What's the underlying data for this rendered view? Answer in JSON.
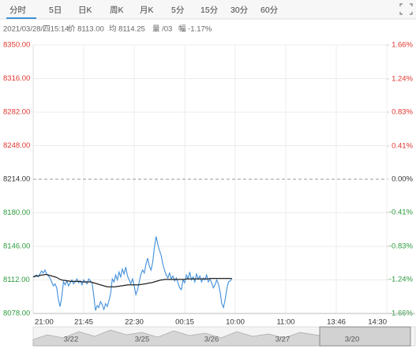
{
  "tabs": [
    "分时",
    "5日",
    "日K",
    "周K",
    "月K",
    "5分",
    "15分",
    "30分",
    "60分"
  ],
  "info": [
    "2021/03/28/四15:14",
    "价 8113.00",
    "均 8114.25",
    "量 /03",
    "幅 -1.17%"
  ],
  "navigator": {
    "dates": [
      "3/22",
      "3/25",
      "3/26",
      "3/27",
      "3/20"
    ]
  },
  "chart_data": {
    "type": "line",
    "x": [
      0,
      1,
      2,
      3,
      4,
      5,
      6,
      7,
      8,
      9,
      10,
      11,
      12,
      13,
      14,
      15,
      16,
      17,
      18,
      19,
      20,
      21,
      22,
      23,
      24,
      25,
      26,
      27,
      28,
      29,
      30,
      31,
      32,
      33,
      34,
      35,
      36,
      37,
      38,
      39,
      40,
      41,
      42,
      43,
      44,
      45,
      46,
      47,
      48,
      49,
      50,
      51,
      52,
      53,
      54,
      55,
      56,
      57,
      58,
      59,
      60,
      61,
      62,
      63,
      64,
      65,
      66,
      67,
      68,
      69,
      70,
      71,
      72,
      73,
      74,
      75,
      76,
      77,
      78,
      79,
      80,
      81,
      82,
      83,
      84,
      85,
      86,
      87,
      88,
      89,
      90,
      91,
      92,
      93,
      94,
      95,
      96,
      97,
      98,
      99,
      100,
      101,
      102,
      103,
      104,
      105,
      106,
      107,
      108,
      109,
      110,
      111,
      112,
      113,
      114,
      115,
      116,
      117,
      118
    ],
    "series": [
      {
        "name": "价",
        "color": "#3f8fd9",
        "values": [
          8115,
          8116,
          8117,
          8115,
          8118,
          8121,
          8119,
          8122,
          8118,
          8116,
          8114,
          8110,
          8106,
          8108,
          8104,
          8092,
          8085,
          8095,
          8110,
          8107,
          8111,
          8106,
          8109,
          8112,
          8108,
          8110,
          8113,
          8109,
          8111,
          8107,
          8112,
          8110,
          8108,
          8113,
          8111,
          8109,
          8096,
          8081,
          8086,
          8084,
          8090,
          8087,
          8082,
          8088,
          8085,
          8091,
          8098,
          8113,
          8110,
          8117,
          8112,
          8120,
          8115,
          8123,
          8118,
          8125,
          8116,
          8112,
          8108,
          8113,
          8106,
          8097,
          8102,
          8110,
          8118,
          8122,
          8119,
          8128,
          8134,
          8126,
          8122,
          8130,
          8145,
          8156,
          8148,
          8142,
          8137,
          8128,
          8122,
          8117,
          8114,
          8119,
          8113,
          8116,
          8111,
          8114,
          8109,
          8104,
          8102,
          8112,
          8109,
          8117,
          8113,
          8120,
          8112,
          8115,
          8110,
          8118,
          8113,
          8116,
          8110,
          8114,
          8112,
          8117,
          8110,
          8113,
          8109,
          8104,
          8107,
          8112,
          8108,
          8100,
          8088,
          8084,
          8092,
          8103,
          8110,
          8111,
          8113
        ]
      },
      {
        "name": "均",
        "color": "#222222",
        "values": [
          8115,
          8115.5,
          8116,
          8116,
          8116.5,
          8117,
          8117,
          8117.5,
          8117.5,
          8117,
          8116.5,
          8116,
          8115.5,
          8115,
          8114.5,
          8113.5,
          8112.5,
          8112,
          8111.5,
          8111.5,
          8111,
          8111,
          8110.5,
          8110.5,
          8110.5,
          8110.5,
          8110.5,
          8110.5,
          8110.5,
          8110,
          8110,
          8110,
          8110,
          8110,
          8110,
          8109.5,
          8109,
          8108.5,
          8108,
          8107.5,
          8107,
          8106.5,
          8106,
          8105.5,
          8105,
          8105,
          8105,
          8105,
          8105,
          8105,
          8105.5,
          8105.5,
          8106,
          8106,
          8106.5,
          8106.5,
          8107,
          8107,
          8107,
          8107,
          8107,
          8107,
          8107,
          8107,
          8107.5,
          8107.5,
          8108,
          8108,
          8108.5,
          8109,
          8109,
          8109.5,
          8110,
          8110.5,
          8111,
          8111.5,
          8112,
          8112,
          8112.5,
          8112.5,
          8112.5,
          8112.5,
          8112.5,
          8112.5,
          8112.5,
          8112.5,
          8112.5,
          8112.5,
          8112.5,
          8112.5,
          8112.5,
          8113,
          8113,
          8113,
          8113,
          8113,
          8113,
          8113,
          8113,
          8113,
          8113,
          8113,
          8113,
          8113,
          8113,
          8113.5,
          8113.5,
          8113.5,
          8113.5,
          8113.5,
          8113.5,
          8113.5,
          8113.5,
          8113.5,
          8113.5,
          8113.5,
          8113.5,
          8113.5,
          8113.5
        ]
      }
    ],
    "xlim": [
      0,
      210
    ],
    "xticks": [
      {
        "value": 0,
        "label": "21:00"
      },
      {
        "value": 30,
        "label": "21:45"
      },
      {
        "value": 60,
        "label": "22:30"
      },
      {
        "value": 90,
        "label": "00:15"
      },
      {
        "value": 120,
        "label": "10:00"
      },
      {
        "value": 150,
        "label": "11:00"
      },
      {
        "value": 180,
        "label": "13:46"
      },
      {
        "value": 210,
        "label": "14:30"
      }
    ],
    "ylim": [
      8078,
      8350
    ],
    "yticks": [
      {
        "value": 8350,
        "label": "8350.00"
      },
      {
        "value": 8316,
        "label": "8316.00"
      },
      {
        "value": 8282,
        "label": "8282.00"
      },
      {
        "value": 8248,
        "label": "8248.00"
      },
      {
        "value": 8214,
        "label": "8214.00"
      },
      {
        "value": 8180,
        "label": "8180.00"
      },
      {
        "value": 8146,
        "label": "8146.00"
      },
      {
        "value": 8112,
        "label": "8112.00"
      },
      {
        "value": 8078,
        "label": "8078.00"
      }
    ],
    "y2lim": [
      -1.66,
      1.66
    ],
    "y2ticks": [
      {
        "value": 1.66,
        "label": "1.66%"
      },
      {
        "value": 1.24,
        "label": "1.24%"
      },
      {
        "value": 0.83,
        "label": "0.83%"
      },
      {
        "value": 0.41,
        "label": "0.41%"
      },
      {
        "value": 0,
        "label": "0.00%"
      },
      {
        "value": -0.41,
        "label": "-0.41%"
      },
      {
        "value": -0.83,
        "label": "-0.83%"
      },
      {
        "value": -1.24,
        "label": "-1.24%"
      },
      {
        "value": -1.66,
        "label": "-1.66%"
      }
    ],
    "grid": true,
    "up_color": "#e0362f",
    "down_color": "#2b9a3c",
    "flat_color": "#555555"
  }
}
